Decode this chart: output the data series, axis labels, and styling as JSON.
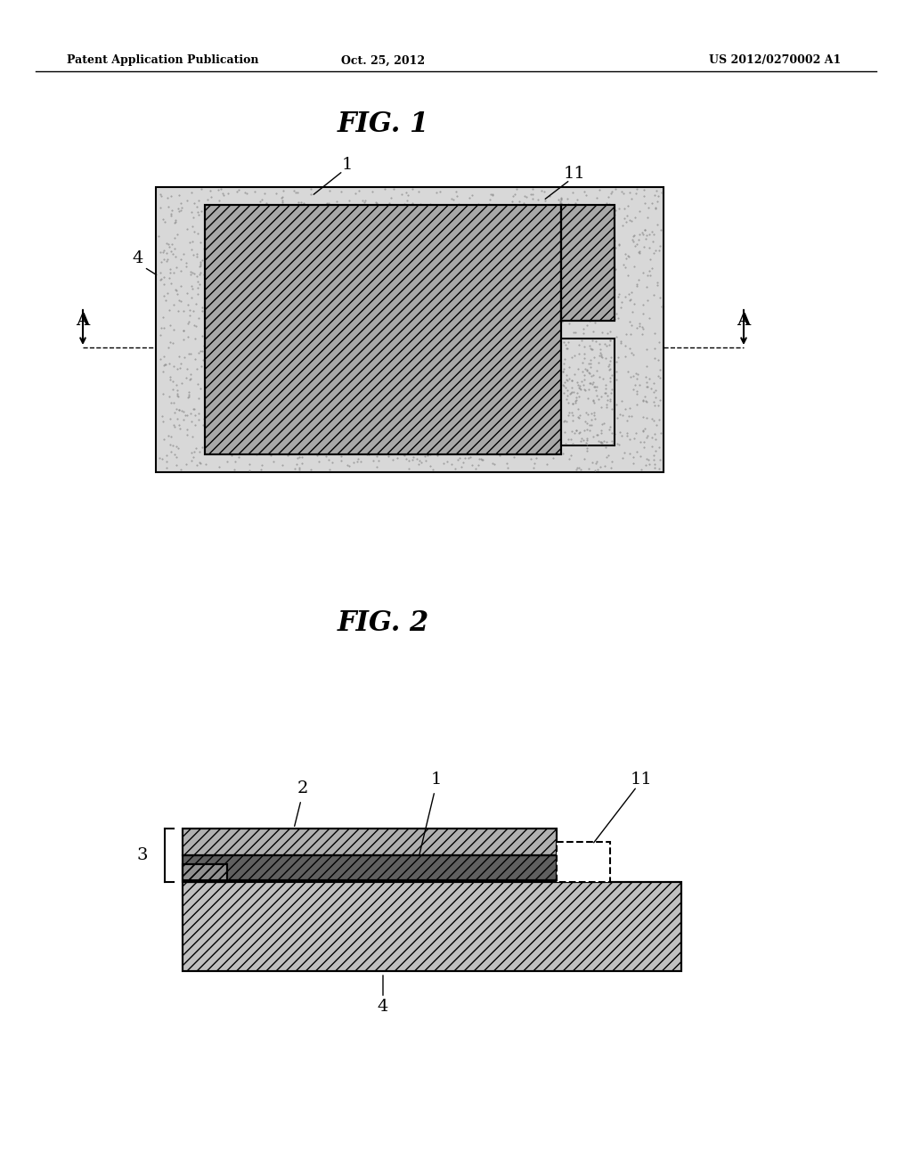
{
  "bg_color": "#ffffff",
  "header_left": "Patent Application Publication",
  "header_center": "Oct. 25, 2012",
  "header_right": "US 2012/0270002 A1",
  "fig1_title": "FIG. 1",
  "fig2_title": "FIG. 2",
  "fig1_label_1": "1",
  "fig1_label_11": "11",
  "fig1_label_4": "4",
  "fig1_label_A_left": "A",
  "fig1_label_A_right": "A",
  "fig2_label_2": "2",
  "fig2_label_1": "1",
  "fig2_label_11": "11",
  "fig2_label_3": "3",
  "fig2_label_4": "4"
}
